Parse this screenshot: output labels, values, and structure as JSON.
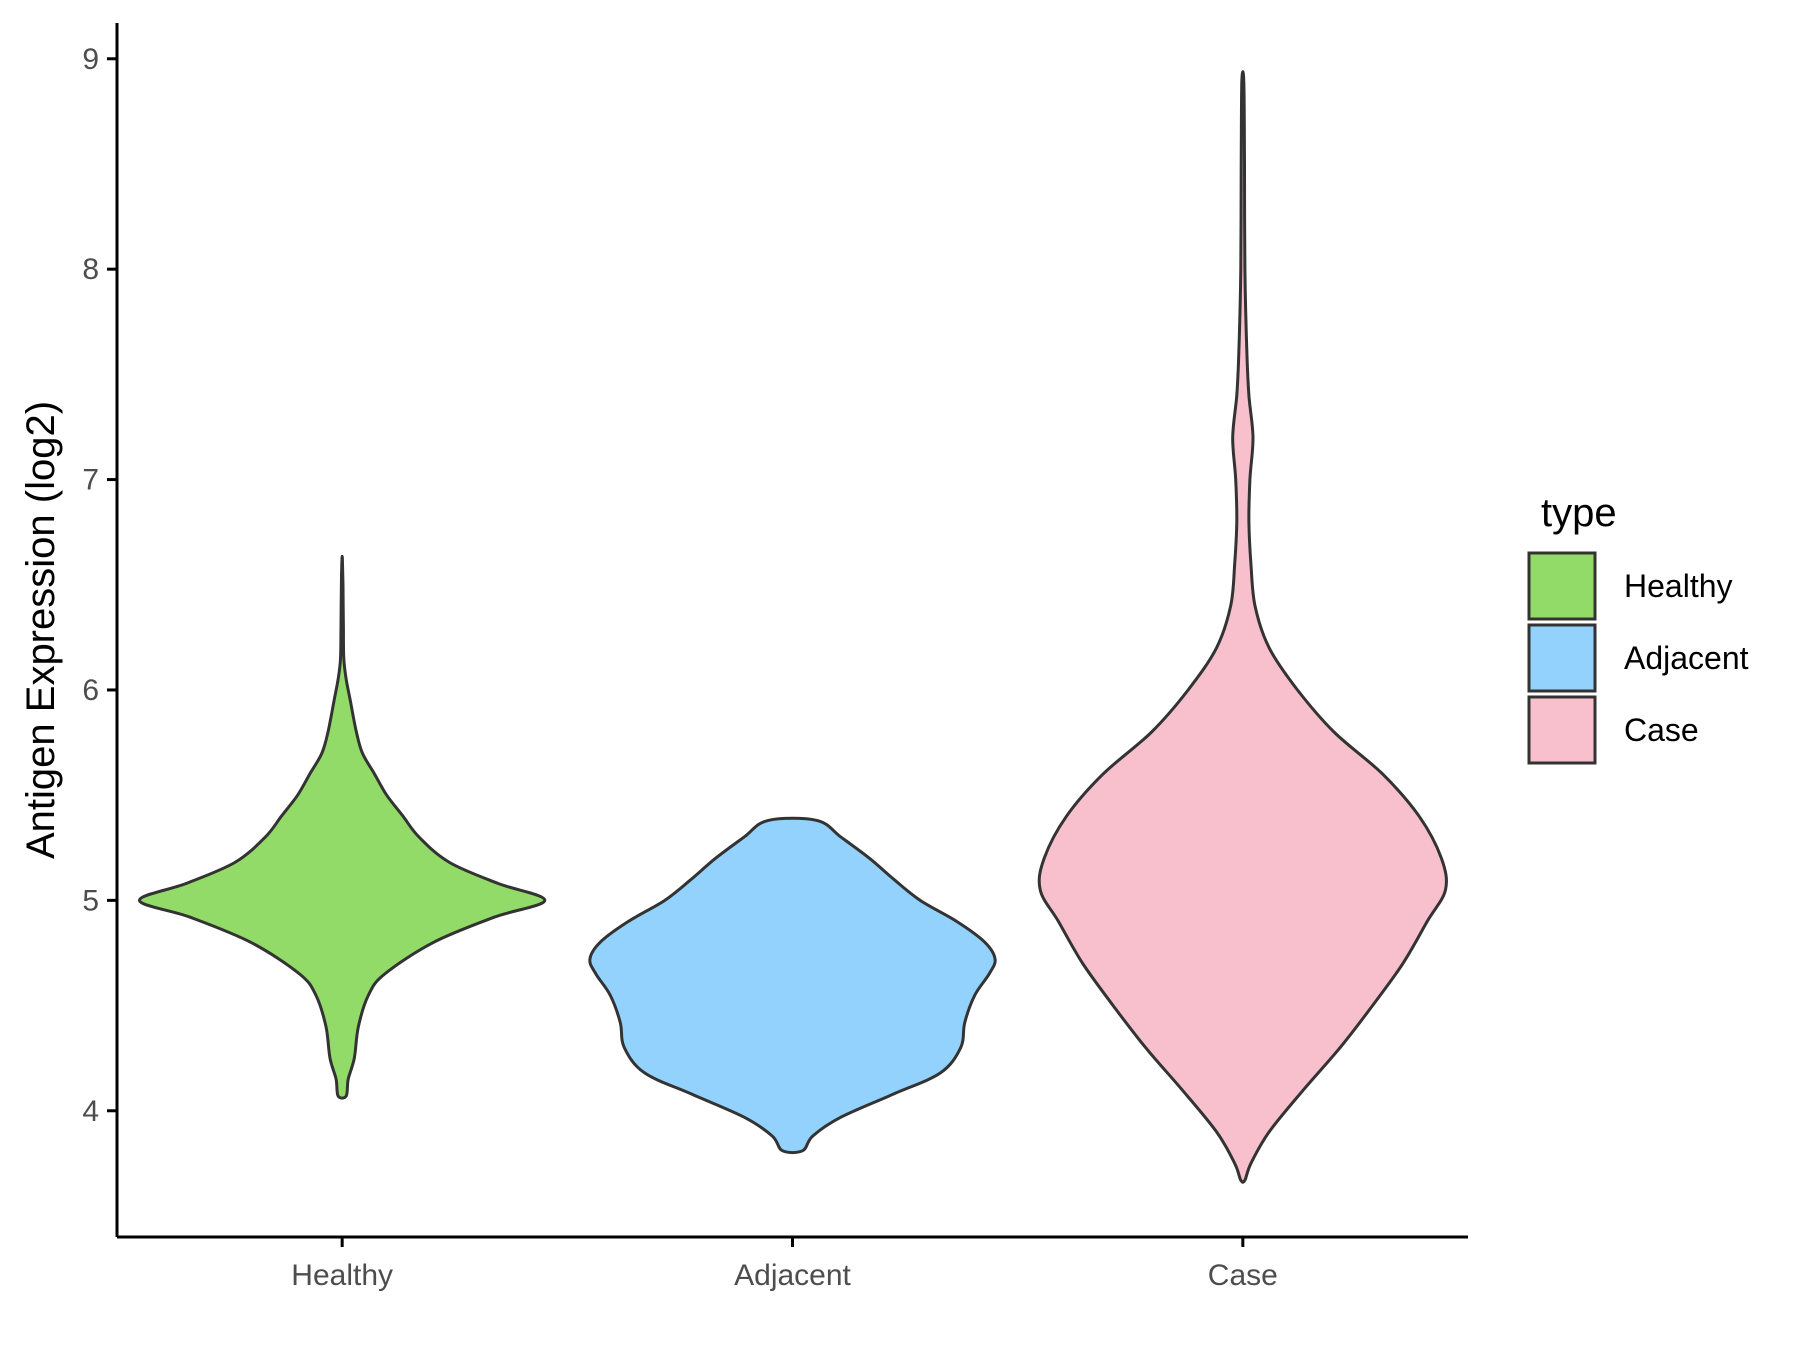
{
  "chart_data": {
    "type": "violin",
    "ylabel": "Antigen Expression (log2)",
    "xlabel": "",
    "ylim": [
      3.4,
      9.17
    ],
    "yticks": [
      4,
      5,
      6,
      7,
      8,
      9
    ],
    "categories": [
      "Healthy",
      "Adjacent",
      "Case"
    ],
    "legend": {
      "title": "type",
      "position": "right",
      "entries": [
        "Healthy",
        "Adjacent",
        "Case"
      ]
    },
    "colors": {
      "Healthy": "#93db69",
      "Adjacent": "#92d2fd",
      "Case": "#f7c0cc",
      "outline": "#333333"
    },
    "series": [
      {
        "name": "Healthy",
        "min": 4.07,
        "max": 6.62,
        "density_profile": [
          [
            4.07,
            0.02
          ],
          [
            4.15,
            0.03
          ],
          [
            4.25,
            0.06
          ],
          [
            4.4,
            0.08
          ],
          [
            4.55,
            0.13
          ],
          [
            4.65,
            0.21
          ],
          [
            4.8,
            0.45
          ],
          [
            4.92,
            0.75
          ],
          [
            5.0,
            1.0
          ],
          [
            5.08,
            0.77
          ],
          [
            5.18,
            0.53
          ],
          [
            5.3,
            0.38
          ],
          [
            5.4,
            0.3
          ],
          [
            5.5,
            0.22
          ],
          [
            5.6,
            0.16
          ],
          [
            5.7,
            0.1
          ],
          [
            5.8,
            0.07
          ],
          [
            5.95,
            0.04
          ],
          [
            6.05,
            0.02
          ],
          [
            6.15,
            0.008
          ],
          [
            6.3,
            0.006
          ],
          [
            6.5,
            0.004
          ],
          [
            6.62,
            0.001
          ]
        ]
      },
      {
        "name": "Adjacent",
        "min": 3.81,
        "max": 5.38,
        "density_profile": [
          [
            3.81,
            0.05
          ],
          [
            3.88,
            0.1
          ],
          [
            3.97,
            0.24
          ],
          [
            4.08,
            0.5
          ],
          [
            4.18,
            0.73
          ],
          [
            4.3,
            0.83
          ],
          [
            4.42,
            0.85
          ],
          [
            4.55,
            0.9
          ],
          [
            4.65,
            0.97
          ],
          [
            4.72,
            1.0
          ],
          [
            4.8,
            0.95
          ],
          [
            4.9,
            0.81
          ],
          [
            5.0,
            0.63
          ],
          [
            5.1,
            0.5
          ],
          [
            5.2,
            0.38
          ],
          [
            5.3,
            0.24
          ],
          [
            5.38,
            0.12
          ]
        ]
      },
      {
        "name": "Case",
        "min": 3.67,
        "max": 8.89,
        "density_profile": [
          [
            3.67,
            0.01
          ],
          [
            3.75,
            0.04
          ],
          [
            3.9,
            0.13
          ],
          [
            4.1,
            0.3
          ],
          [
            4.3,
            0.48
          ],
          [
            4.5,
            0.64
          ],
          [
            4.7,
            0.79
          ],
          [
            4.9,
            0.91
          ],
          [
            5.05,
            1.0
          ],
          [
            5.2,
            0.98
          ],
          [
            5.4,
            0.87
          ],
          [
            5.6,
            0.69
          ],
          [
            5.8,
            0.45
          ],
          [
            6.0,
            0.27
          ],
          [
            6.2,
            0.13
          ],
          [
            6.4,
            0.06
          ],
          [
            6.6,
            0.04
          ],
          [
            6.8,
            0.03
          ],
          [
            7.0,
            0.035
          ],
          [
            7.2,
            0.05
          ],
          [
            7.4,
            0.03
          ],
          [
            7.6,
            0.02
          ],
          [
            8.0,
            0.01
          ],
          [
            8.5,
            0.008
          ],
          [
            8.89,
            0.005
          ]
        ]
      }
    ]
  }
}
